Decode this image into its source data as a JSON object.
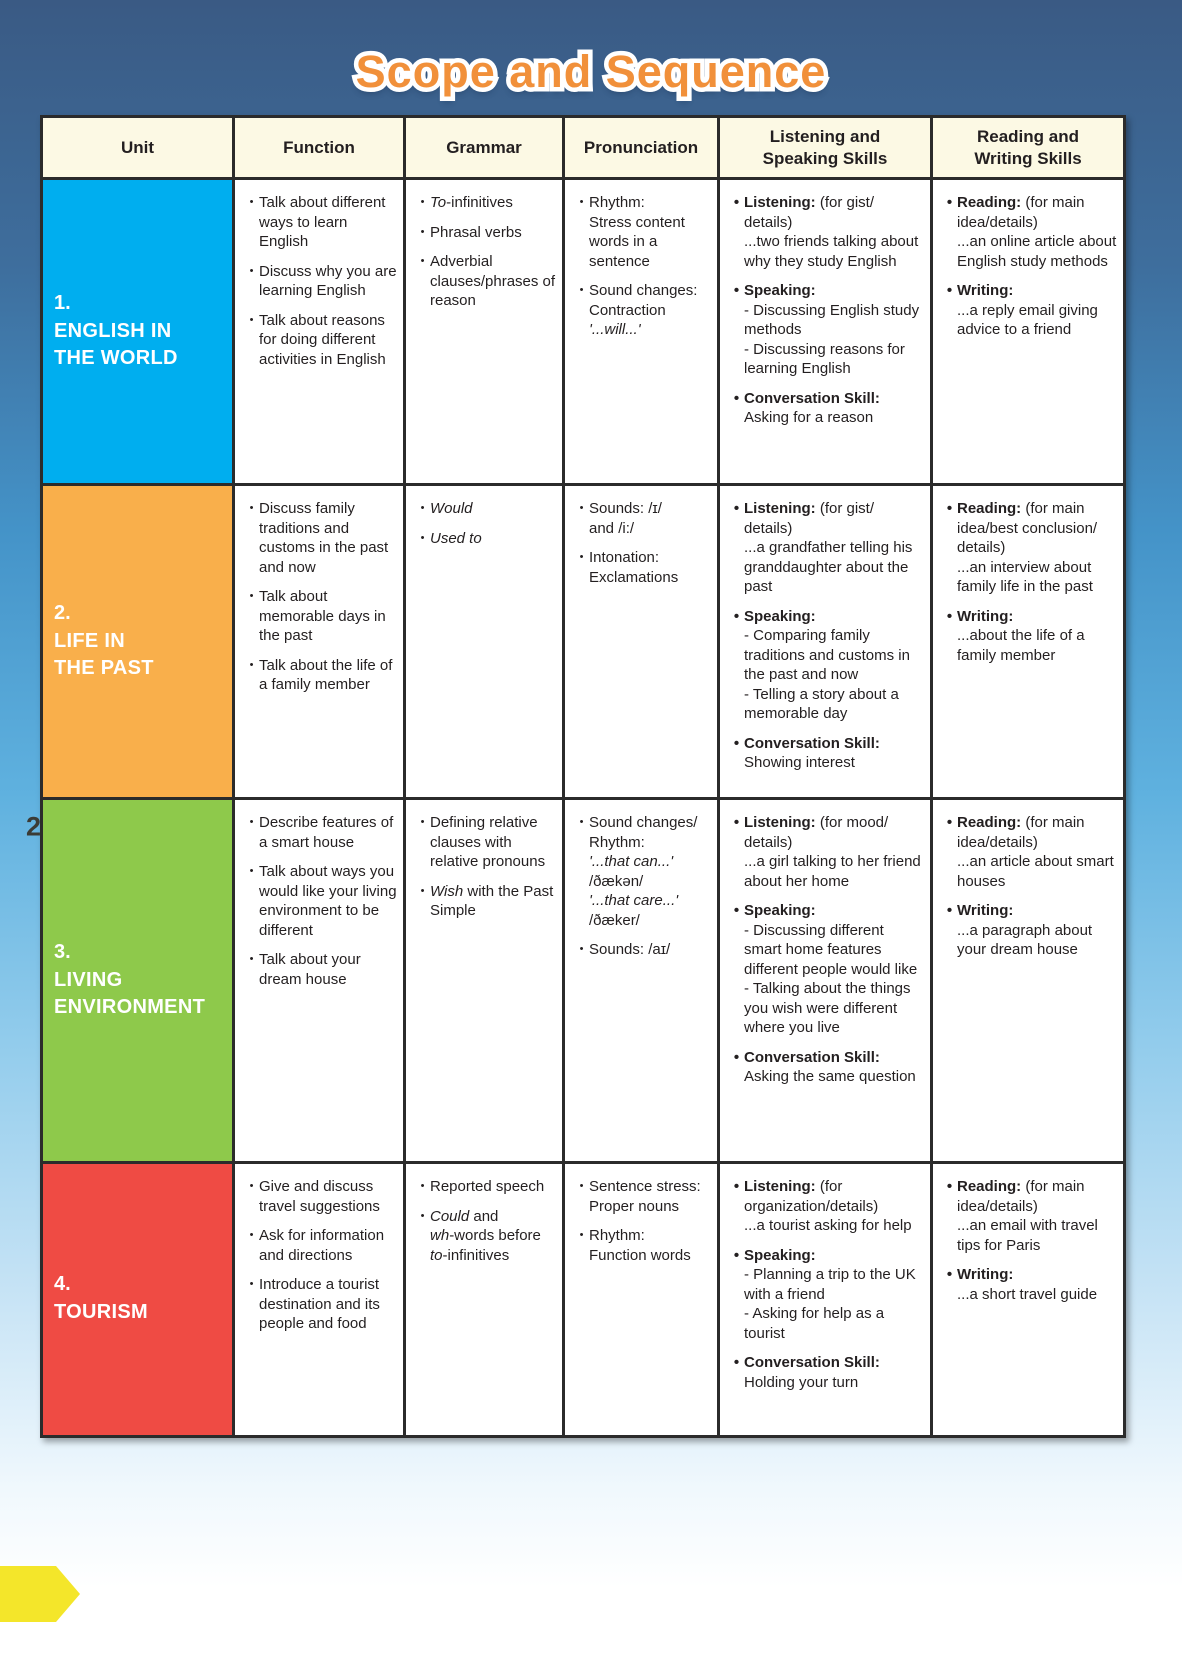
{
  "title": "Scope and Sequence",
  "page_number": "2",
  "header": {
    "columns": [
      "Unit",
      "Function",
      "Grammar",
      "Pronunciation",
      "Listening and\nSpeaking Skills",
      "Reading and\nWriting Skills"
    ]
  },
  "colors": {
    "unit1_blue": "#00AEEF",
    "unit2_orange": "#F9AF4B",
    "unit3_green": "#8EC94B",
    "unit4_red": "#EF4B44",
    "header_cream": "#FCF9E4",
    "border_dark": "#2B2B2B",
    "title_orange": "#F1903A",
    "badge_yellow": "#F4E62A"
  },
  "units": [
    {
      "number": "1.",
      "name": "ENGLISH IN\nTHE WORLD",
      "color": "#00AEEF",
      "function": [
        [
          {
            "t": "Talk about different ways to learn English"
          }
        ],
        [
          {
            "t": "Discuss why you are learning English"
          }
        ],
        [
          {
            "t": "Talk about reasons for doing different activities in English"
          }
        ]
      ],
      "grammar": [
        [
          {
            "t": "To",
            "s": "i"
          },
          {
            "t": "-infinitives"
          }
        ],
        [
          {
            "t": "Phrasal verbs"
          }
        ],
        [
          {
            "t": "Adverbial clauses/phrases of reason"
          }
        ]
      ],
      "pronunciation": [
        [
          {
            "t": "Rhythm:\nStress content words in a sentence"
          }
        ],
        [
          {
            "t": "Sound changes:\nContraction\n"
          },
          {
            "t": "'...will...'",
            "s": "i"
          }
        ]
      ],
      "listening_speaking": [
        [
          {
            "t": "Listening:",
            "s": "b"
          },
          {
            "t": " (for gist/\ndetails)\n...two friends talking about why they study English"
          }
        ],
        [
          {
            "t": "Speaking:",
            "s": "b"
          },
          {
            "t": "\n- Discussing English study methods\n- Discussing reasons for learning English"
          }
        ],
        [
          {
            "t": "Conversation Skill:",
            "s": "b"
          },
          {
            "t": "\nAsking for a reason"
          }
        ]
      ],
      "reading_writing": [
        [
          {
            "t": "Reading:",
            "s": "b"
          },
          {
            "t": " (for main\nidea/details)\n...an online article about English study methods"
          }
        ],
        [
          {
            "t": "Writing:",
            "s": "b"
          },
          {
            "t": "\n...a reply email giving advice to a friend"
          }
        ]
      ]
    },
    {
      "number": "2.",
      "name": "LIFE IN\nTHE PAST",
      "color": "#F9AF4B",
      "function": [
        [
          {
            "t": "Discuss family traditions and customs in the past and now"
          }
        ],
        [
          {
            "t": "Talk about memorable days in the past"
          }
        ],
        [
          {
            "t": "Talk about the life of a family member"
          }
        ]
      ],
      "grammar": [
        [
          {
            "t": "Would",
            "s": "i"
          }
        ],
        [
          {
            "t": "Used to",
            "s": "i"
          }
        ]
      ],
      "pronunciation": [
        [
          {
            "t": "Sounds: /ɪ/\nand /i:/"
          }
        ],
        [
          {
            "t": "Intonation:\nExclamations"
          }
        ]
      ],
      "listening_speaking": [
        [
          {
            "t": "Listening:",
            "s": "b"
          },
          {
            "t": " (for gist/\ndetails)\n...a grandfather telling his granddaughter about the past"
          }
        ],
        [
          {
            "t": "Speaking:",
            "s": "b"
          },
          {
            "t": "\n- Comparing family traditions and customs in the past and now\n- Telling a story about a memorable day"
          }
        ],
        [
          {
            "t": "Conversation Skill:",
            "s": "b"
          },
          {
            "t": "\nShowing interest"
          }
        ]
      ],
      "reading_writing": [
        [
          {
            "t": "Reading:",
            "s": "b"
          },
          {
            "t": " (for main\nidea/best conclusion/\ndetails)\n...an interview about family life in the past"
          }
        ],
        [
          {
            "t": "Writing:",
            "s": "b"
          },
          {
            "t": "\n...about the life of a family member"
          }
        ]
      ]
    },
    {
      "number": "3.",
      "name": "LIVING\nENVIRONMENT",
      "color": "#8EC94B",
      "function": [
        [
          {
            "t": "Describe features of a smart house"
          }
        ],
        [
          {
            "t": "Talk about ways you would like your living environment to be different"
          }
        ],
        [
          {
            "t": "Talk about your dream house"
          }
        ]
      ],
      "grammar": [
        [
          {
            "t": "Defining relative clauses with relative pronouns"
          }
        ],
        [
          {
            "t": "Wish",
            "s": "i"
          },
          {
            "t": " with the Past Simple"
          }
        ]
      ],
      "pronunciation": [
        [
          {
            "t": "Sound changes/\nRhythm:\n"
          },
          {
            "t": "'...that can...'",
            "s": "i"
          },
          {
            "t": "\n/ðækən/\n"
          },
          {
            "t": "'...that care...'",
            "s": "i"
          },
          {
            "t": "\n/ðæker/"
          }
        ],
        [
          {
            "t": "Sounds: /aɪ/"
          }
        ]
      ],
      "listening_speaking": [
        [
          {
            "t": "Listening:",
            "s": "b"
          },
          {
            "t": " (for mood/\ndetails)\n...a girl talking to her friend about her home"
          }
        ],
        [
          {
            "t": "Speaking:",
            "s": "b"
          },
          {
            "t": "\n- Discussing different smart home features different people would like\n- Talking about the things you wish were different where you live"
          }
        ],
        [
          {
            "t": "Conversation Skill:",
            "s": "b"
          },
          {
            "t": "\nAsking the same question"
          }
        ]
      ],
      "reading_writing": [
        [
          {
            "t": "Reading:",
            "s": "b"
          },
          {
            "t": " (for main\nidea/details)\n...an article about smart houses"
          }
        ],
        [
          {
            "t": "Writing:",
            "s": "b"
          },
          {
            "t": "\n...a paragraph about your dream house"
          }
        ]
      ]
    },
    {
      "number": "4.",
      "name": "TOURISM",
      "color": "#EF4B44",
      "function": [
        [
          {
            "t": "Give and discuss travel suggestions"
          }
        ],
        [
          {
            "t": "Ask for information and directions"
          }
        ],
        [
          {
            "t": "Introduce a tourist destination and its people and food"
          }
        ]
      ],
      "grammar": [
        [
          {
            "t": "Reported speech"
          }
        ],
        [
          {
            "t": "Could",
            "s": "i"
          },
          {
            "t": " and\n"
          },
          {
            "t": "wh",
            "s": "i"
          },
          {
            "t": "-words before\n"
          },
          {
            "t": "to",
            "s": "i"
          },
          {
            "t": "-infinitives"
          }
        ]
      ],
      "pronunciation": [
        [
          {
            "t": "Sentence stress: Proper nouns"
          }
        ],
        [
          {
            "t": "Rhythm:\nFunction words"
          }
        ]
      ],
      "listening_speaking": [
        [
          {
            "t": "Listening:",
            "s": "b"
          },
          {
            "t": " (for\norganization/details)\n...a tourist asking for help"
          }
        ],
        [
          {
            "t": "Speaking:",
            "s": "b"
          },
          {
            "t": "\n- Planning a trip to the UK with a friend\n- Asking for help as a tourist"
          }
        ],
        [
          {
            "t": "Conversation Skill:",
            "s": "b"
          },
          {
            "t": "\nHolding your turn"
          }
        ]
      ],
      "reading_writing": [
        [
          {
            "t": "Reading:",
            "s": "b"
          },
          {
            "t": " (for main\nidea/details)\n...an email with travel tips for Paris"
          }
        ],
        [
          {
            "t": "Writing:",
            "s": "b"
          },
          {
            "t": "\n...a short travel guide"
          }
        ]
      ]
    }
  ]
}
